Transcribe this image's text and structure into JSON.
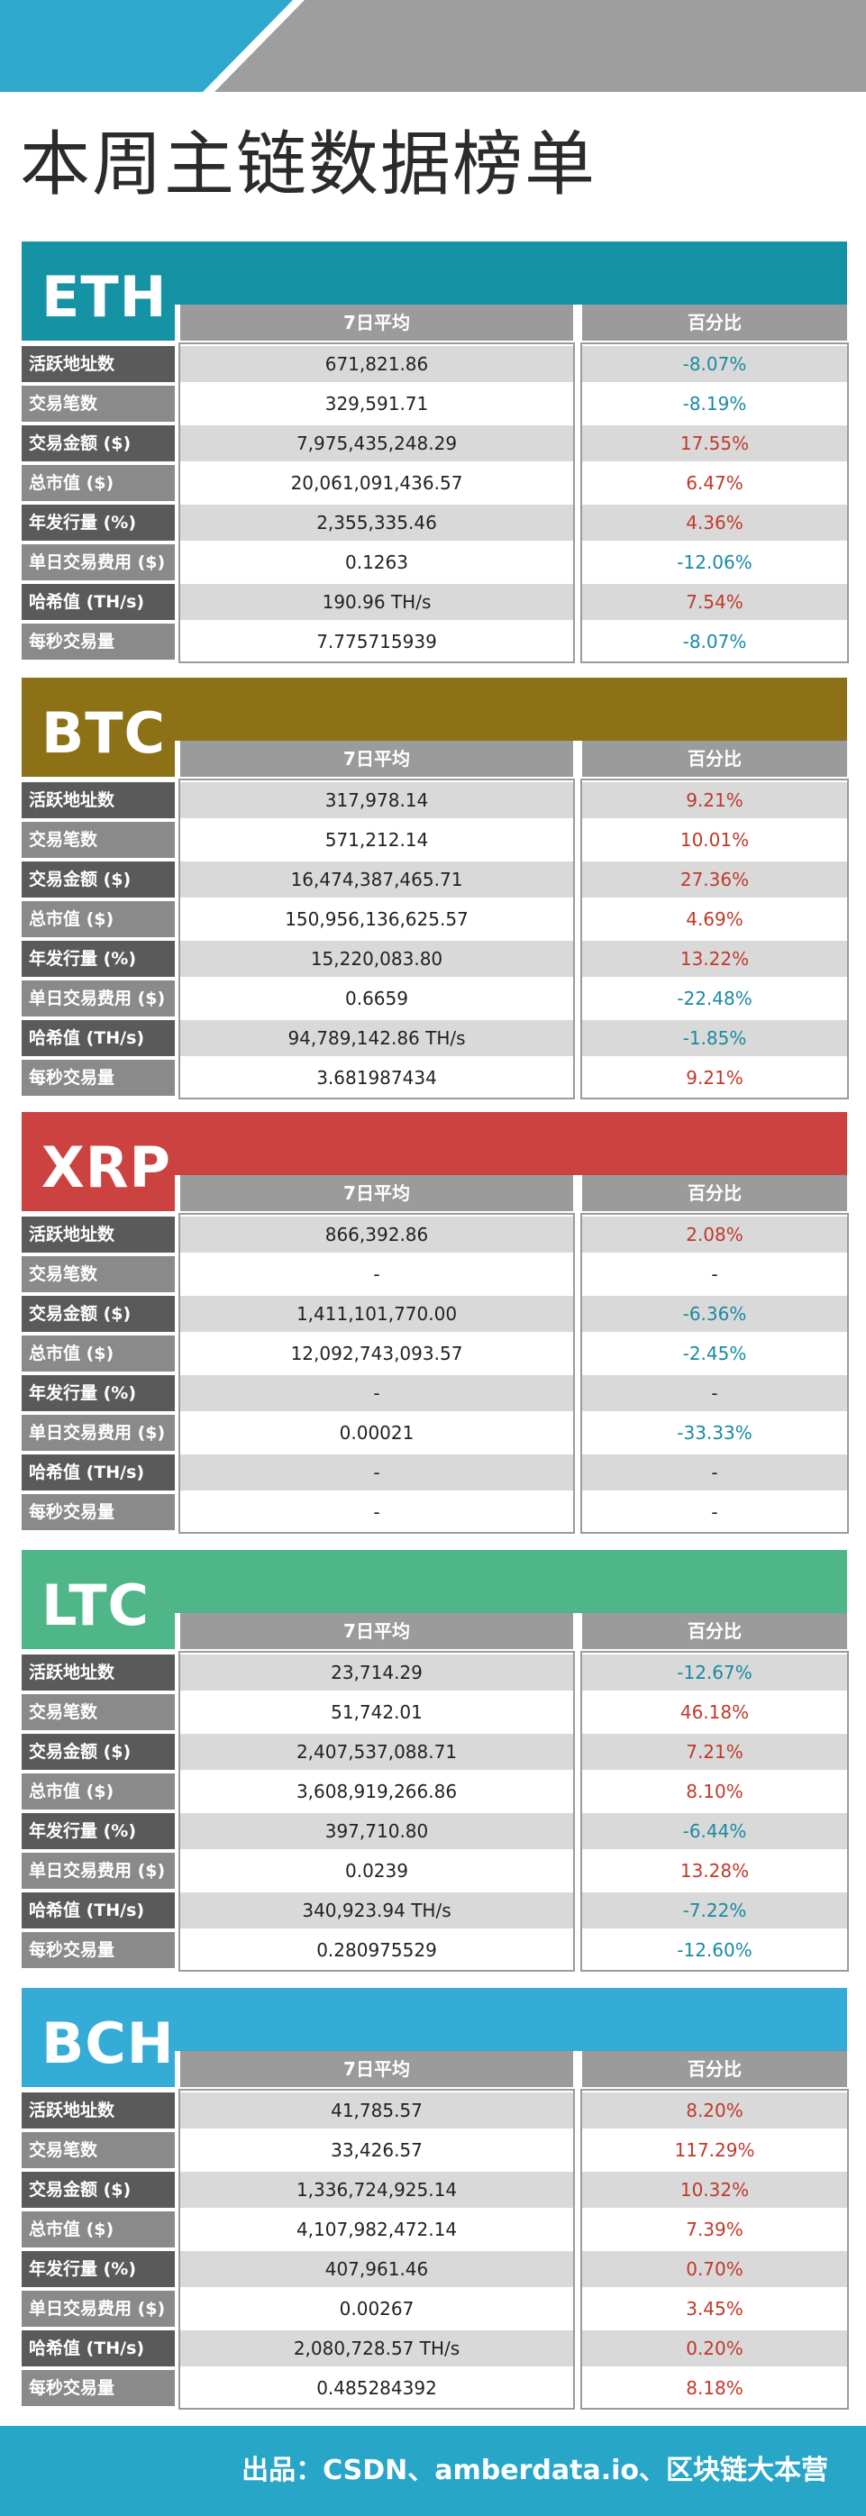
{
  "title": "本周主链数据榜单",
  "columns": {
    "avg": "7日平均",
    "pct": "百分比"
  },
  "colors": {
    "banner_blue": "#2ea8cc",
    "banner_gray": "#9e9e9e",
    "up": "#c0392b",
    "down": "#1a8aa0"
  },
  "sections": [
    {
      "name": "ETH",
      "color": "#1593a5",
      "rows": [
        {
          "label": "活跃地址数",
          "avg": "671,821.86",
          "pct": "-8.07%",
          "dir": "down"
        },
        {
          "label": "交易笔数",
          "avg": "329,591.71",
          "pct": "-8.19%",
          "dir": "down"
        },
        {
          "label": "交易金额 ($)",
          "avg": "7,975,435,248.29",
          "pct": "17.55%",
          "dir": "up"
        },
        {
          "label": "总市值 ($)",
          "avg": "20,061,091,436.57",
          "pct": "6.47%",
          "dir": "up"
        },
        {
          "label": "年发行量 (%)",
          "avg": "2,355,335.46",
          "pct": "4.36%",
          "dir": "up"
        },
        {
          "label": "单日交易费用 ($)",
          "avg": "0.1263",
          "pct": "-12.06%",
          "dir": "down"
        },
        {
          "label": "哈希值 (TH/s)",
          "avg": "190.96 TH/s",
          "pct": "7.54%",
          "dir": "up"
        },
        {
          "label": "每秒交易量",
          "avg": "7.775715939",
          "pct": "-8.07%",
          "dir": "down"
        }
      ]
    },
    {
      "name": "BTC",
      "color": "#8c7116",
      "rows": [
        {
          "label": "活跃地址数",
          "avg": "317,978.14",
          "pct": "9.21%",
          "dir": "up"
        },
        {
          "label": "交易笔数",
          "avg": "571,212.14",
          "pct": "10.01%",
          "dir": "up"
        },
        {
          "label": "交易金额 ($)",
          "avg": "16,474,387,465.71",
          "pct": "27.36%",
          "dir": "up"
        },
        {
          "label": "总市值 ($)",
          "avg": "150,956,136,625.57",
          "pct": "4.69%",
          "dir": "up"
        },
        {
          "label": "年发行量 (%)",
          "avg": "15,220,083.80",
          "pct": "13.22%",
          "dir": "up"
        },
        {
          "label": "单日交易费用 ($)",
          "avg": "0.6659",
          "pct": "-22.48%",
          "dir": "down"
        },
        {
          "label": "哈希值 (TH/s)",
          "avg": "94,789,142.86 TH/s",
          "pct": "-1.85%",
          "dir": "down"
        },
        {
          "label": "每秒交易量",
          "avg": "3.681987434",
          "pct": "9.21%",
          "dir": "up"
        }
      ]
    },
    {
      "name": "XRP",
      "color": "#cc4240",
      "rows": [
        {
          "label": "活跃地址数",
          "avg": "866,392.86",
          "pct": "2.08%",
          "dir": "up"
        },
        {
          "label": "交易笔数",
          "avg": "-",
          "pct": "-",
          "dir": "none"
        },
        {
          "label": "交易金额 ($)",
          "avg": "1,411,101,770.00",
          "pct": "-6.36%",
          "dir": "down"
        },
        {
          "label": "总市值 ($)",
          "avg": "12,092,743,093.57",
          "pct": "-2.45%",
          "dir": "down"
        },
        {
          "label": "年发行量 (%)",
          "avg": "-",
          "pct": "-",
          "dir": "none"
        },
        {
          "label": "单日交易费用 ($)",
          "avg": "0.00021",
          "pct": "-33.33%",
          "dir": "down"
        },
        {
          "label": "哈希值 (TH/s)",
          "avg": "-",
          "pct": "-",
          "dir": "none"
        },
        {
          "label": "每秒交易量",
          "avg": "-",
          "pct": "-",
          "dir": "none"
        }
      ]
    },
    {
      "name": "LTC",
      "color": "#4fb68a",
      "rows": [
        {
          "label": "活跃地址数",
          "avg": "23,714.29",
          "pct": "-12.67%",
          "dir": "down"
        },
        {
          "label": "交易笔数",
          "avg": "51,742.01",
          "pct": "46.18%",
          "dir": "up"
        },
        {
          "label": "交易金额 ($)",
          "avg": "2,407,537,088.71",
          "pct": "7.21%",
          "dir": "up"
        },
        {
          "label": "总市值 ($)",
          "avg": "3,608,919,266.86",
          "pct": "8.10%",
          "dir": "up"
        },
        {
          "label": "年发行量 (%)",
          "avg": "397,710.80",
          "pct": "-6.44%",
          "dir": "down"
        },
        {
          "label": "单日交易费用 ($)",
          "avg": "0.0239",
          "pct": "13.28%",
          "dir": "up"
        },
        {
          "label": "哈希值 (TH/s)",
          "avg": "340,923.94 TH/s",
          "pct": "-7.22%",
          "dir": "down"
        },
        {
          "label": "每秒交易量",
          "avg": "0.280975529",
          "pct": "-12.60%",
          "dir": "down"
        }
      ]
    },
    {
      "name": "BCH",
      "color": "#34acd6",
      "rows": [
        {
          "label": "活跃地址数",
          "avg": "41,785.57",
          "pct": "8.20%",
          "dir": "up"
        },
        {
          "label": "交易笔数",
          "avg": "33,426.57",
          "pct": "117.29%",
          "dir": "up"
        },
        {
          "label": "交易金额 ($)",
          "avg": "1,336,724,925.14",
          "pct": "10.32%",
          "dir": "up"
        },
        {
          "label": "总市值 ($)",
          "avg": "4,107,982,472.14",
          "pct": "7.39%",
          "dir": "up"
        },
        {
          "label": "年发行量 (%)",
          "avg": "407,961.46",
          "pct": "0.70%",
          "dir": "up"
        },
        {
          "label": "单日交易费用 ($)",
          "avg": "0.00267",
          "pct": "3.45%",
          "dir": "up"
        },
        {
          "label": "哈希值 (TH/s)",
          "avg": "2,080,728.57 TH/s",
          "pct": "0.20%",
          "dir": "up"
        },
        {
          "label": "每秒交易量",
          "avg": "0.485284392",
          "pct": "8.18%",
          "dir": "up"
        }
      ]
    }
  ],
  "footer": "出品：CSDN、amberdata.io、区块链大本营"
}
